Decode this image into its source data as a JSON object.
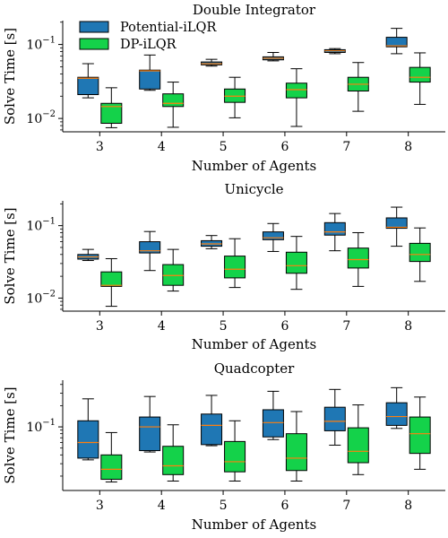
{
  "colors": {
    "potential": "#1f77b4",
    "dp": "#14d24a",
    "median": "#ff7f0e",
    "axis": "#000000"
  },
  "legend": {
    "placement": "top-left",
    "entries": [
      {
        "label": "Potential-iLQR",
        "color": "#1f77b4"
      },
      {
        "label": "DP-iLQR",
        "color": "#14d24a"
      }
    ]
  },
  "chart_data": [
    {
      "type": "box",
      "title": "Double Integrator",
      "xlabel": "Number of Agents",
      "ylabel": "Solve Time [s]",
      "yscale": "log",
      "ylim": [
        0.0066,
        0.21
      ],
      "yticks": [
        {
          "value": 0.01,
          "label": "10",
          "exp": "−2"
        },
        {
          "value": 0.1,
          "label": "10",
          "exp": "−1"
        }
      ],
      "categories": [
        "3",
        "4",
        "5",
        "6",
        "7",
        "8"
      ],
      "series": [
        {
          "name": "Potential-iLQR",
          "boxes": [
            {
              "wlo": 0.019,
              "q1": 0.021,
              "med": 0.035,
              "q3": 0.036,
              "whi": 0.055
            },
            {
              "wlo": 0.024,
              "q1": 0.025,
              "med": 0.044,
              "q3": 0.045,
              "whi": 0.072
            },
            {
              "wlo": 0.051,
              "q1": 0.053,
              "med": 0.055,
              "q3": 0.058,
              "whi": 0.063
            },
            {
              "wlo": 0.06,
              "q1": 0.062,
              "med": 0.065,
              "q3": 0.068,
              "whi": 0.078
            },
            {
              "wlo": 0.075,
              "q1": 0.078,
              "med": 0.082,
              "q3": 0.085,
              "whi": 0.088
            },
            {
              "wlo": 0.075,
              "q1": 0.093,
              "med": 0.096,
              "q3": 0.125,
              "whi": 0.165
            }
          ]
        },
        {
          "name": "DP-iLQR",
          "boxes": [
            {
              "wlo": 0.0075,
              "q1": 0.0086,
              "med": 0.0145,
              "q3": 0.016,
              "whi": 0.026
            },
            {
              "wlo": 0.0076,
              "q1": 0.0145,
              "med": 0.016,
              "q3": 0.0215,
              "whi": 0.031
            },
            {
              "wlo": 0.0102,
              "q1": 0.0165,
              "med": 0.02,
              "q3": 0.025,
              "whi": 0.036
            },
            {
              "wlo": 0.0078,
              "q1": 0.019,
              "med": 0.0245,
              "q3": 0.03,
              "whi": 0.047
            },
            {
              "wlo": 0.0125,
              "q1": 0.0235,
              "med": 0.029,
              "q3": 0.036,
              "whi": 0.057
            },
            {
              "wlo": 0.0155,
              "q1": 0.031,
              "med": 0.036,
              "q3": 0.049,
              "whi": 0.077
            }
          ]
        }
      ]
    },
    {
      "type": "box",
      "title": "Unicycle",
      "xlabel": "Number of Agents",
      "ylabel": "Solve Time [s]",
      "yscale": "log",
      "ylim": [
        0.0066,
        0.22
      ],
      "yticks": [
        {
          "value": 0.01,
          "label": "10",
          "exp": "−2"
        },
        {
          "value": 0.1,
          "label": "10",
          "exp": "−1"
        }
      ],
      "categories": [
        "3",
        "4",
        "5",
        "6",
        "7",
        "8"
      ],
      "series": [
        {
          "name": "Potential-iLQR",
          "boxes": [
            {
              "wlo": 0.033,
              "q1": 0.0345,
              "med": 0.037,
              "q3": 0.04,
              "whi": 0.047
            },
            {
              "wlo": 0.024,
              "q1": 0.042,
              "med": 0.045,
              "q3": 0.06,
              "whi": 0.083
            },
            {
              "wlo": 0.048,
              "q1": 0.052,
              "med": 0.056,
              "q3": 0.062,
              "whi": 0.073
            },
            {
              "wlo": 0.044,
              "q1": 0.064,
              "med": 0.068,
              "q3": 0.082,
              "whi": 0.107
            },
            {
              "wlo": 0.045,
              "q1": 0.074,
              "med": 0.082,
              "q3": 0.11,
              "whi": 0.147
            },
            {
              "wlo": 0.052,
              "q1": 0.092,
              "med": 0.095,
              "q3": 0.128,
              "whi": 0.18
            }
          ]
        },
        {
          "name": "DP-iLQR",
          "boxes": [
            {
              "wlo": 0.0077,
              "q1": 0.0145,
              "med": 0.015,
              "q3": 0.023,
              "whi": 0.035
            },
            {
              "wlo": 0.0125,
              "q1": 0.015,
              "med": 0.0205,
              "q3": 0.029,
              "whi": 0.047
            },
            {
              "wlo": 0.014,
              "q1": 0.019,
              "med": 0.025,
              "q3": 0.038,
              "whi": 0.066
            },
            {
              "wlo": 0.0132,
              "q1": 0.022,
              "med": 0.028,
              "q3": 0.043,
              "whi": 0.071
            },
            {
              "wlo": 0.0145,
              "q1": 0.026,
              "med": 0.034,
              "q3": 0.049,
              "whi": 0.08
            },
            {
              "wlo": 0.017,
              "q1": 0.032,
              "med": 0.04,
              "q3": 0.057,
              "whi": 0.093
            }
          ]
        }
      ]
    },
    {
      "type": "box",
      "title": "Quadcopter",
      "xlabel": "Number of Agents",
      "ylabel": "Solve Time [s]",
      "yscale": "log",
      "ylim": [
        0.0125,
        0.46
      ],
      "yticks": [
        {
          "value": 0.1,
          "label": "10",
          "exp": "−1"
        }
      ],
      "categories": [
        "3",
        "4",
        "5",
        "6",
        "7",
        "8"
      ],
      "series": [
        {
          "name": "Potential-iLQR",
          "boxes": [
            {
              "wlo": 0.034,
              "q1": 0.036,
              "med": 0.06,
              "q3": 0.122,
              "whi": 0.25
            },
            {
              "wlo": 0.044,
              "q1": 0.046,
              "med": 0.1,
              "q3": 0.138,
              "whi": 0.27
            },
            {
              "wlo": 0.054,
              "q1": 0.056,
              "med": 0.105,
              "q3": 0.152,
              "whi": 0.28
            },
            {
              "wlo": 0.066,
              "q1": 0.072,
              "med": 0.115,
              "q3": 0.175,
              "whi": 0.32
            },
            {
              "wlo": 0.055,
              "q1": 0.088,
              "med": 0.12,
              "q3": 0.19,
              "whi": 0.34
            },
            {
              "wlo": 0.095,
              "q1": 0.105,
              "med": 0.14,
              "q3": 0.22,
              "whi": 0.36
            }
          ]
        },
        {
          "name": "DP-iLQR",
          "boxes": [
            {
              "wlo": 0.0165,
              "q1": 0.018,
              "med": 0.025,
              "q3": 0.04,
              "whi": 0.083
            },
            {
              "wlo": 0.017,
              "q1": 0.021,
              "med": 0.028,
              "q3": 0.053,
              "whi": 0.107
            },
            {
              "wlo": 0.017,
              "q1": 0.023,
              "med": 0.032,
              "q3": 0.062,
              "whi": 0.122
            },
            {
              "wlo": 0.017,
              "q1": 0.024,
              "med": 0.036,
              "q3": 0.08,
              "whi": 0.165
            },
            {
              "wlo": 0.021,
              "q1": 0.031,
              "med": 0.045,
              "q3": 0.097,
              "whi": 0.205
            },
            {
              "wlo": 0.025,
              "q1": 0.042,
              "med": 0.08,
              "q3": 0.138,
              "whi": 0.265
            }
          ]
        }
      ]
    }
  ]
}
